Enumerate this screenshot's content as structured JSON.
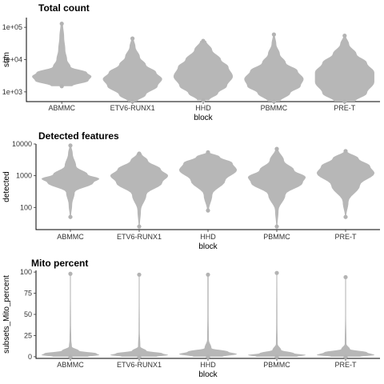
{
  "colors": {
    "points": "#b3b3b3",
    "axis": "#000000",
    "text": "#333333"
  },
  "chart_data": [
    {
      "type": "violin",
      "title": "Total count",
      "xlabel": "block",
      "ylabel": "sum",
      "scale": "log10",
      "ylim": [
        500,
        200000
      ],
      "yticks": [
        1000,
        10000,
        100000
      ],
      "ytick_labels": [
        "1e+03",
        "1e+04",
        "1e+05"
      ],
      "categories": [
        "ABMMC",
        "ETV6-RUNX1",
        "HHD",
        "PBMMC",
        "PRE-T"
      ],
      "grid": false,
      "distributions": [
        {
          "category": "ABMMC",
          "profile": [
            [
              1500,
              0.35
            ],
            [
              2200,
              0.9
            ],
            [
              3000,
              1.0
            ],
            [
              4000,
              0.85
            ],
            [
              6000,
              0.3
            ],
            [
              10000,
              0.18
            ],
            [
              20000,
              0.12
            ],
            [
              50000,
              0.08
            ],
            [
              130000,
              0.04
            ]
          ]
        },
        {
          "category": "ETV6-RUNX1",
          "profile": [
            [
              500,
              0.15
            ],
            [
              800,
              0.45
            ],
            [
              1500,
              0.85
            ],
            [
              2500,
              1.0
            ],
            [
              4000,
              0.8
            ],
            [
              7000,
              0.45
            ],
            [
              12000,
              0.25
            ],
            [
              25000,
              0.1
            ],
            [
              45000,
              0.04
            ]
          ]
        },
        {
          "category": "HHD",
          "profile": [
            [
              550,
              0.2
            ],
            [
              900,
              0.5
            ],
            [
              1500,
              0.8
            ],
            [
              3000,
              1.0
            ],
            [
              6000,
              0.85
            ],
            [
              10000,
              0.6
            ],
            [
              20000,
              0.3
            ],
            [
              38000,
              0.1
            ]
          ]
        },
        {
          "category": "PBMMC",
          "profile": [
            [
              500,
              0.2
            ],
            [
              900,
              0.55
            ],
            [
              1500,
              0.9
            ],
            [
              2500,
              1.0
            ],
            [
              4500,
              0.8
            ],
            [
              8000,
              0.4
            ],
            [
              15000,
              0.2
            ],
            [
              30000,
              0.08
            ],
            [
              60000,
              0.03
            ]
          ]
        },
        {
          "category": "PRE-T",
          "profile": [
            [
              500,
              0.35
            ],
            [
              900,
              0.75
            ],
            [
              2000,
              1.0
            ],
            [
              4000,
              1.0
            ],
            [
              8000,
              0.75
            ],
            [
              15000,
              0.4
            ],
            [
              30000,
              0.15
            ],
            [
              55000,
              0.04
            ]
          ]
        }
      ]
    },
    {
      "type": "violin",
      "title": "Detected features",
      "xlabel": "block",
      "ylabel": "detected",
      "scale": "log10",
      "ylim": [
        20,
        10000
      ],
      "yticks": [
        100,
        1000,
        10000
      ],
      "ytick_labels": [
        "100",
        "1000",
        "10000"
      ],
      "categories": [
        "ABMMC",
        "ETV6-RUNX1",
        "HHD",
        "PBMMC",
        "PRE-T"
      ],
      "grid": false,
      "distributions": [
        {
          "category": "ABMMC",
          "profile": [
            [
              50,
              0.02
            ],
            [
              120,
              0.06
            ],
            [
              300,
              0.15
            ],
            [
              600,
              0.8
            ],
            [
              800,
              1.0
            ],
            [
              1100,
              0.6
            ],
            [
              2000,
              0.2
            ],
            [
              5000,
              0.08
            ],
            [
              9000,
              0.03
            ]
          ]
        },
        {
          "category": "ETV6-RUNX1",
          "profile": [
            [
              25,
              0.02
            ],
            [
              80,
              0.06
            ],
            [
              250,
              0.25
            ],
            [
              600,
              0.8
            ],
            [
              1000,
              1.0
            ],
            [
              1600,
              0.75
            ],
            [
              3000,
              0.3
            ],
            [
              5000,
              0.08
            ]
          ]
        },
        {
          "category": "HHD",
          "profile": [
            [
              80,
              0.03
            ],
            [
              250,
              0.15
            ],
            [
              700,
              0.6
            ],
            [
              1500,
              1.0
            ],
            [
              2500,
              0.85
            ],
            [
              4000,
              0.4
            ],
            [
              5500,
              0.05
            ]
          ]
        },
        {
          "category": "PBMMC",
          "profile": [
            [
              25,
              0.02
            ],
            [
              80,
              0.06
            ],
            [
              250,
              0.3
            ],
            [
              600,
              0.9
            ],
            [
              900,
              1.0
            ],
            [
              1500,
              0.6
            ],
            [
              3000,
              0.25
            ],
            [
              7000,
              0.05
            ]
          ]
        },
        {
          "category": "PRE-T",
          "profile": [
            [
              50,
              0.02
            ],
            [
              150,
              0.1
            ],
            [
              500,
              0.5
            ],
            [
              1200,
              1.0
            ],
            [
              2000,
              0.85
            ],
            [
              3500,
              0.45
            ],
            [
              6000,
              0.05
            ]
          ]
        }
      ]
    },
    {
      "type": "violin",
      "title": "Mito percent",
      "xlabel": "block",
      "ylabel": "subsets_Mito_percent",
      "scale": "linear",
      "ylim": [
        -2,
        102
      ],
      "yticks": [
        0,
        25,
        50,
        75,
        100
      ],
      "ytick_labels": [
        "0",
        "25",
        "50",
        "75",
        "100"
      ],
      "categories": [
        "ABMMC",
        "ETV6-RUNX1",
        "HHD",
        "PBMMC",
        "PRE-T"
      ],
      "grid": false,
      "distributions": [
        {
          "category": "ABMMC",
          "profile": [
            [
              0,
              0.6
            ],
            [
              2,
              1.0
            ],
            [
              4,
              0.9
            ],
            [
              7,
              0.3
            ],
            [
              12,
              0.05
            ],
            [
              20,
              0.03
            ],
            [
              40,
              0.02
            ],
            [
              70,
              0.015
            ],
            [
              98,
              0.015
            ]
          ]
        },
        {
          "category": "ETV6-RUNX1",
          "profile": [
            [
              0,
              0.6
            ],
            [
              2,
              1.0
            ],
            [
              4,
              0.8
            ],
            [
              7,
              0.25
            ],
            [
              12,
              0.04
            ],
            [
              30,
              0.02
            ],
            [
              70,
              0.015
            ],
            [
              97,
              0.015
            ]
          ]
        },
        {
          "category": "HHD",
          "profile": [
            [
              0,
              0.5
            ],
            [
              3,
              1.0
            ],
            [
              6,
              0.7
            ],
            [
              10,
              0.12
            ],
            [
              20,
              0.03
            ],
            [
              50,
              0.02
            ],
            [
              97,
              0.02
            ]
          ]
        },
        {
          "category": "PBMMC",
          "profile": [
            [
              0,
              0.7
            ],
            [
              2,
              1.0
            ],
            [
              4,
              0.6
            ],
            [
              8,
              0.15
            ],
            [
              15,
              0.03
            ],
            [
              40,
              0.02
            ],
            [
              99,
              0.015
            ]
          ]
        },
        {
          "category": "PRE-T",
          "profile": [
            [
              0,
              0.5
            ],
            [
              2,
              1.0
            ],
            [
              5,
              0.75
            ],
            [
              9,
              0.15
            ],
            [
              15,
              0.03
            ],
            [
              50,
              0.015
            ],
            [
              94,
              0.015
            ]
          ]
        }
      ]
    }
  ]
}
